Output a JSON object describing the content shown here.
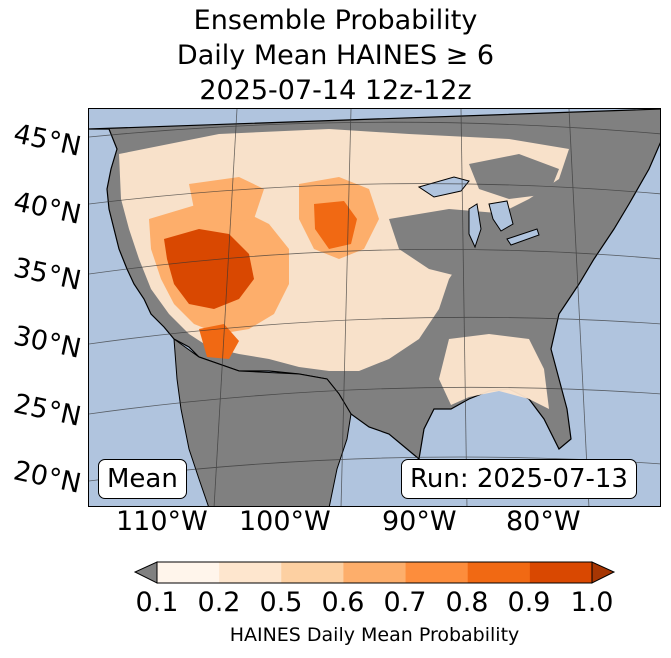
{
  "title": {
    "line1": "Ensemble Probability",
    "line2": "Daily Mean HAINES ≥ 6",
    "line3": "2025-07-14 12z-12z"
  },
  "map": {
    "lat_labels": [
      "45°N",
      "40°N",
      "35°N",
      "30°N",
      "25°N",
      "20°N"
    ],
    "lon_labels": [
      "110°W",
      "100°W",
      "90°W",
      "80°W"
    ],
    "stat_label": "Mean",
    "run_label": "Run: 2025-07-13",
    "colors": {
      "ocean": "#b0c4de",
      "low": "#808080",
      "land_edge": "#000000"
    }
  },
  "colorbar": {
    "ticks": [
      "0.1",
      "0.2",
      "0.5",
      "0.6",
      "0.7",
      "0.8",
      "0.9",
      "1.0"
    ],
    "label": "HAINES Daily Mean Probability",
    "colors": [
      "#fff5eb",
      "#fee6ce",
      "#fdd0a2",
      "#fdae6b",
      "#fd8d3c",
      "#f16913",
      "#d94801",
      "#a63603"
    ],
    "under_color": "#808080"
  }
}
